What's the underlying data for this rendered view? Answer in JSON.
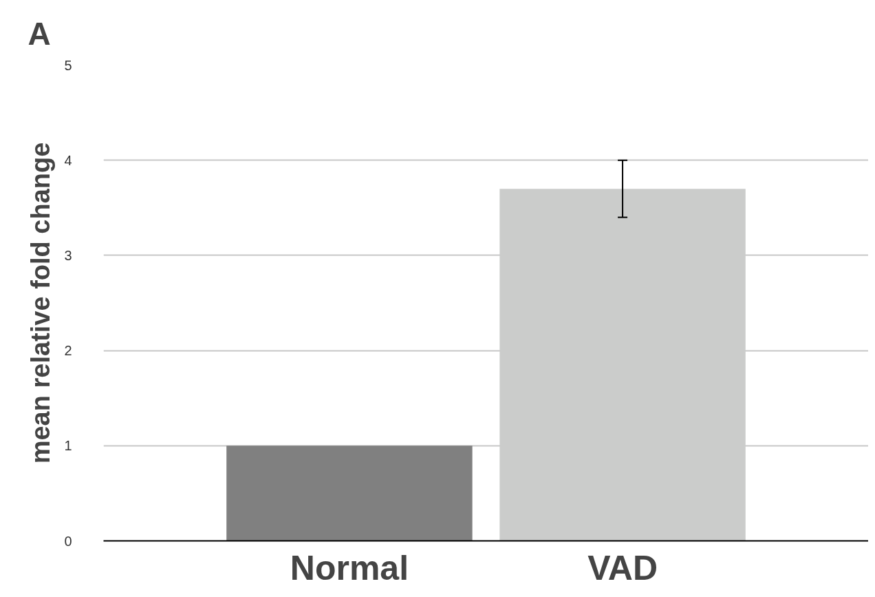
{
  "chart_data": {
    "type": "bar",
    "ylabel": "mean relative fold change",
    "categories": [
      "Normal",
      "VAD"
    ],
    "values": [
      1,
      3.7
    ],
    "colors": [
      "#808080",
      "#cbcccb"
    ],
    "errors": [
      null,
      0.3
    ],
    "ylim": [
      0,
      5
    ],
    "yticks": [
      0,
      1,
      2,
      3,
      4,
      5
    ],
    "grid": "y",
    "annotations": [
      "A"
    ]
  }
}
